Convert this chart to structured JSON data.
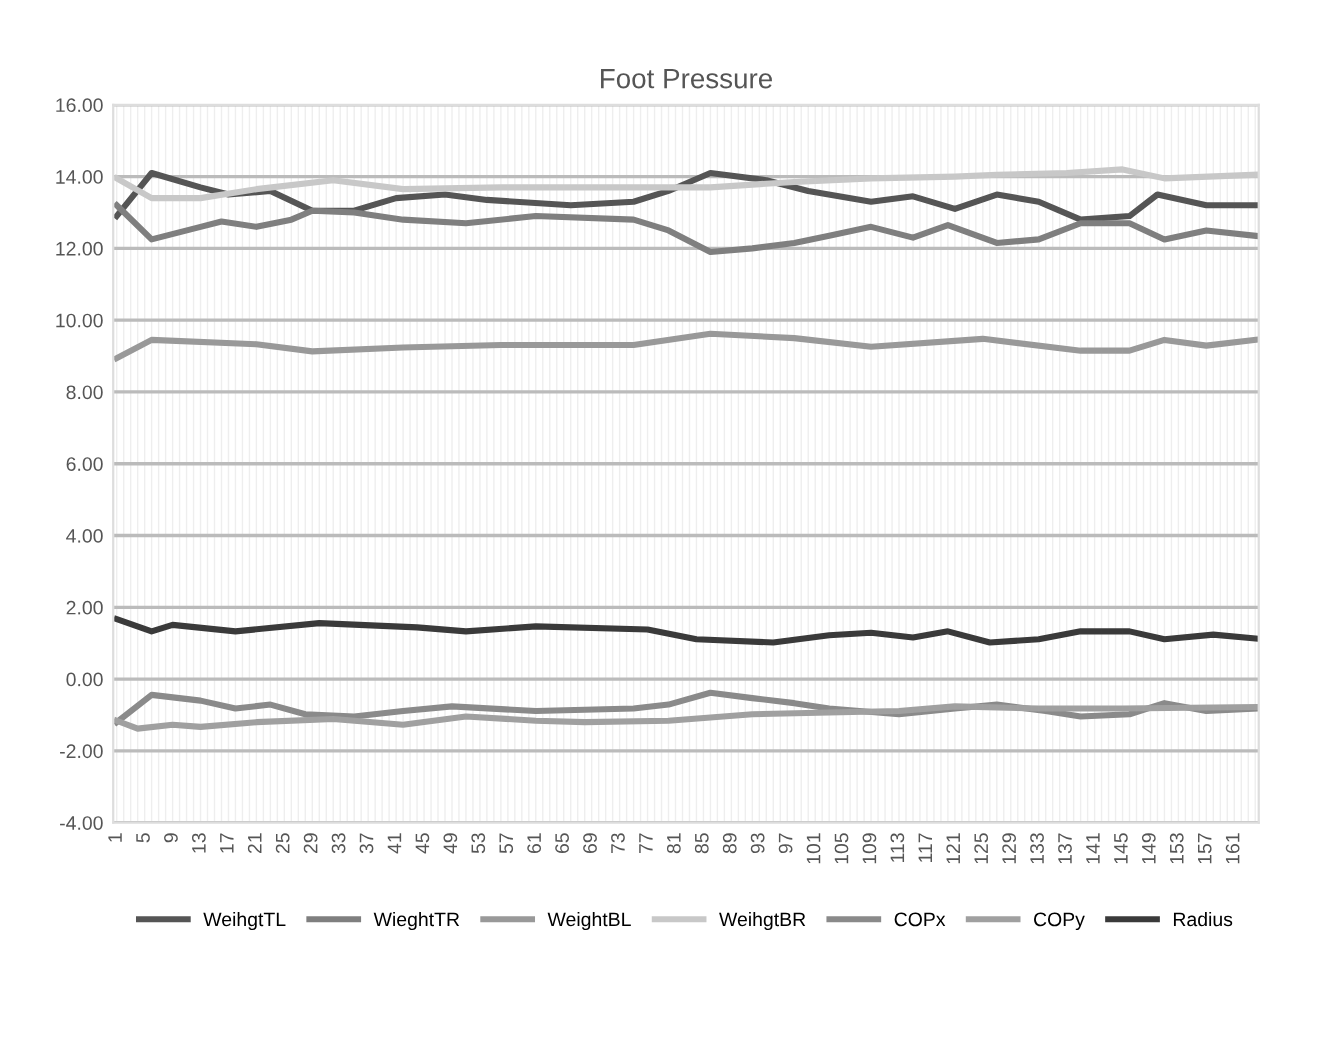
{
  "chart_data": {
    "type": "line",
    "title": "Foot Pressure",
    "xlim": [
      0.5,
      164.5
    ],
    "xticks": [
      1,
      5,
      9,
      13,
      17,
      21,
      25,
      29,
      33,
      37,
      41,
      45,
      49,
      53,
      57,
      61,
      65,
      69,
      73,
      77,
      81,
      85,
      89,
      93,
      97,
      101,
      105,
      109,
      113,
      117,
      121,
      125,
      129,
      133,
      137,
      141,
      145,
      149,
      153,
      157,
      161
    ],
    "ylim": [
      -4,
      16
    ],
    "yticks": [
      {
        "value": -4,
        "label": "-4.00"
      },
      {
        "value": -2,
        "label": "-2.00"
      },
      {
        "value": 0,
        "label": "0.00"
      },
      {
        "value": 2,
        "label": "2.00"
      },
      {
        "value": 4,
        "label": "4.00"
      },
      {
        "value": 6,
        "label": "6.00"
      },
      {
        "value": 8,
        "label": "8.00"
      },
      {
        "value": 10,
        "label": "10.00"
      },
      {
        "value": 12,
        "label": "12.00"
      },
      {
        "value": 14,
        "label": "14.00"
      },
      {
        "value": 16,
        "label": "16.00"
      }
    ],
    "grid": true,
    "legend": "bottom",
    "marker": "none",
    "line_style": "solid",
    "series": [
      {
        "name": "WeihgtTL",
        "color": "#555555",
        "x": [
          1,
          6,
          13,
          17,
          23,
          29,
          35,
          41,
          48,
          54,
          66,
          75,
          80,
          86,
          94,
          100,
          109,
          115,
          121,
          127,
          133,
          139,
          146,
          150,
          157,
          164
        ],
        "values": [
          12.9,
          14.1,
          13.7,
          13.5,
          13.6,
          13.05,
          13.05,
          13.4,
          13.5,
          13.35,
          13.2,
          13.3,
          13.6,
          14.1,
          13.9,
          13.6,
          13.3,
          13.45,
          13.1,
          13.5,
          13.3,
          12.8,
          12.9,
          13.5,
          13.2,
          13.2
        ]
      },
      {
        "name": "WieghtTR",
        "color": "#7f7f7f",
        "x": [
          1,
          6,
          13,
          16,
          21,
          26,
          29,
          35,
          42,
          51,
          61,
          75,
          80,
          86,
          92,
          98,
          103,
          109,
          115,
          120,
          127,
          133,
          139,
          146,
          151,
          157,
          164
        ],
        "values": [
          13.2,
          12.25,
          12.6,
          12.75,
          12.6,
          12.8,
          13.05,
          13.0,
          12.8,
          12.7,
          12.9,
          12.8,
          12.5,
          11.9,
          12.0,
          12.15,
          12.35,
          12.6,
          12.3,
          12.65,
          12.15,
          12.25,
          12.7,
          12.7,
          12.25,
          12.5,
          12.35
        ]
      },
      {
        "name": "WeightBL",
        "color": "#999999",
        "x": [
          1,
          6,
          21,
          29,
          42,
          56,
          75,
          86,
          98,
          109,
          125,
          139,
          146,
          151,
          157,
          164
        ],
        "values": [
          8.94,
          9.45,
          9.33,
          9.13,
          9.24,
          9.31,
          9.31,
          9.62,
          9.5,
          9.26,
          9.48,
          9.15,
          9.15,
          9.45,
          9.29,
          9.45
        ]
      },
      {
        "name": "WeihgtBR",
        "color": "#c8c8c8",
        "x": [
          1,
          6,
          13,
          21,
          32,
          42,
          56,
          68,
          86,
          98,
          109,
          121,
          127,
          137,
          145,
          151,
          164
        ],
        "values": [
          13.95,
          13.4,
          13.4,
          13.65,
          13.9,
          13.65,
          13.7,
          13.7,
          13.7,
          13.85,
          13.95,
          14.0,
          14.05,
          14.1,
          14.2,
          13.95,
          14.05
        ]
      },
      {
        "name": "COPx",
        "color": "#8a8a8a",
        "x": [
          1,
          6,
          13,
          18,
          23,
          28,
          35,
          42,
          49,
          61,
          75,
          80,
          86,
          92,
          98,
          103,
          113,
          121,
          127,
          134,
          139,
          146,
          151,
          157,
          164
        ],
        "values": [
          -1.2,
          -0.44,
          -0.6,
          -0.82,
          -0.71,
          -0.98,
          -1.04,
          -0.89,
          -0.76,
          -0.89,
          -0.82,
          -0.71,
          -0.38,
          -0.53,
          -0.67,
          -0.82,
          -0.98,
          -0.82,
          -0.71,
          -0.89,
          -1.04,
          -0.98,
          -0.67,
          -0.89,
          -0.82
        ]
      },
      {
        "name": "COPy",
        "color": "#a0a0a0",
        "x": [
          1,
          4,
          9,
          13,
          21,
          32,
          42,
          51,
          61,
          68,
          80,
          92,
          103,
          113,
          121,
          133,
          145,
          164
        ],
        "values": [
          -1.16,
          -1.38,
          -1.27,
          -1.33,
          -1.2,
          -1.11,
          -1.27,
          -1.04,
          -1.16,
          -1.2,
          -1.16,
          -0.98,
          -0.93,
          -0.89,
          -0.76,
          -0.82,
          -0.82,
          -0.78
        ]
      },
      {
        "name": "Radius",
        "color": "#3a3a3a",
        "x": [
          1,
          6,
          9,
          18,
          30,
          44,
          51,
          61,
          77,
          84,
          95,
          103,
          109,
          115,
          120,
          126,
          133,
          139,
          146,
          151,
          158,
          164
        ],
        "values": [
          1.67,
          1.33,
          1.51,
          1.33,
          1.56,
          1.44,
          1.33,
          1.47,
          1.38,
          1.11,
          1.02,
          1.22,
          1.29,
          1.16,
          1.33,
          1.02,
          1.11,
          1.33,
          1.33,
          1.11,
          1.24,
          1.13
        ]
      }
    ]
  }
}
